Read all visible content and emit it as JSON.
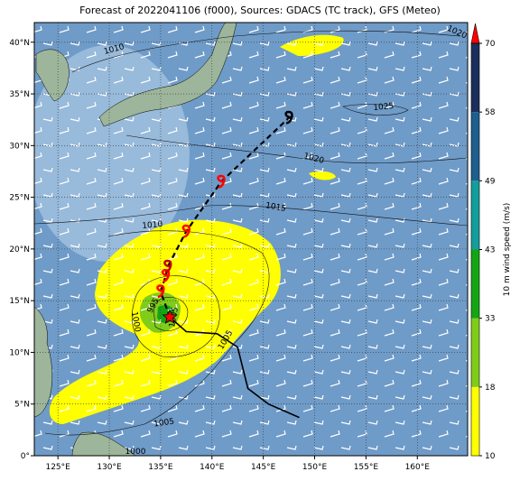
{
  "chart_data": {
    "type": "map",
    "title": "Forecast of 2022041106 (f000), Sources: GDACS (TC track), GFS (Meteo)",
    "xlim": [
      122.7,
      164.9
    ],
    "ylim": [
      0,
      41.9
    ],
    "xticks": [
      {
        "value": 125,
        "label": "125°E"
      },
      {
        "value": 130,
        "label": "130°E"
      },
      {
        "value": 135,
        "label": "135°E"
      },
      {
        "value": 140,
        "label": "140°E"
      },
      {
        "value": 145,
        "label": "145°E"
      },
      {
        "value": 150,
        "label": "150°E"
      },
      {
        "value": 155,
        "label": "155°E"
      },
      {
        "value": 160,
        "label": "160°E"
      }
    ],
    "yticks": [
      {
        "value": 0,
        "label": "0°"
      },
      {
        "value": 5,
        "label": "5°N"
      },
      {
        "value": 10,
        "label": "10°N"
      },
      {
        "value": 15,
        "label": "15°N"
      },
      {
        "value": 20,
        "label": "20°N"
      },
      {
        "value": 25,
        "label": "25°N"
      },
      {
        "value": 30,
        "label": "30°N"
      },
      {
        "value": 35,
        "label": "35°N"
      },
      {
        "value": 40,
        "label": "40°N"
      }
    ],
    "grid": true,
    "isobar_labels": [
      "1010",
      "1020",
      "1025",
      "1020",
      "1015",
      "1010",
      "1005",
      "1000",
      "995",
      "1005",
      "1005",
      "1000"
    ],
    "track": {
      "past": {
        "lon": [
          135.9,
          137.5,
          140.5,
          142.5,
          143.5,
          145.5,
          148.5
        ],
        "lat": [
          13.4,
          12.0,
          11.8,
          10.5,
          6.5,
          5.0,
          3.7
        ]
      },
      "forecast": {
        "lon": [
          135.9,
          135.0,
          135.5,
          135.7,
          137.5,
          140.9,
          147.5
        ],
        "lat": [
          13.4,
          15.9,
          17.4,
          18.3,
          21.7,
          26.5,
          32.7
        ]
      },
      "marker_colors": [
        "#ff0000",
        "#ff0000",
        "#ff0000",
        "#c00000",
        "#ff0000",
        "#ff0000",
        "#000000"
      ]
    },
    "colorbar": {
      "label": "10 m wind speed (m/s)",
      "ticks": [
        10,
        18,
        33,
        43,
        49,
        58,
        70
      ],
      "colors": [
        "#ffff00",
        "#80cc1a",
        "#14a514",
        "#139d9d",
        "#1e5f8f",
        "#1b2f5d"
      ],
      "extend_color": "#ff0000"
    }
  }
}
